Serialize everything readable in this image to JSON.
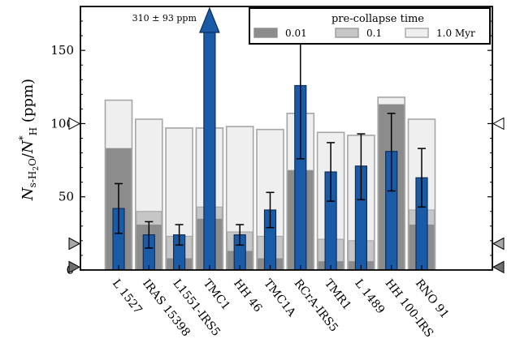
{
  "chart_data": {
    "type": "bar",
    "ylabel_parts": {
      "N": "N",
      "sub": "s-H",
      "two": "2",
      "tail": "O",
      "slash": "/",
      "N2": "N",
      "sup": "*",
      "sub2": "H",
      "units": " (ppm)"
    },
    "ylim": [
      0,
      180
    ],
    "yticks": [
      0,
      50,
      100,
      150
    ],
    "categories": [
      "L 1527",
      "IRAS 15398",
      "L1551-IRS5",
      "TMC1",
      "HH 46",
      "TMC1A",
      "RCrA-IRS5",
      "TMR1",
      "L 1489",
      "HH 100-IRS",
      "RNO 91"
    ],
    "series": [
      {
        "name": "0.01",
        "color": "#8c8c8c",
        "values": [
          83,
          31,
          8,
          35,
          13,
          8,
          68,
          6,
          6,
          113,
          31
        ]
      },
      {
        "name": "0.1",
        "color": "#c6c6c6",
        "values": [
          83,
          40,
          23,
          43,
          26,
          23,
          68,
          21,
          20,
          113,
          41
        ]
      },
      {
        "name": "1.0 Myr",
        "color": "#efefef",
        "values": [
          116,
          103,
          97,
          97,
          98,
          96,
          107,
          94,
          92,
          118,
          103
        ]
      }
    ],
    "observed": {
      "color": "#1a5ba8",
      "values": [
        42,
        24,
        24,
        310,
        24,
        41,
        126,
        67,
        71,
        81,
        63
      ],
      "err_low": [
        17,
        9,
        7,
        93,
        7,
        12,
        50,
        20,
        23,
        27,
        20
      ],
      "err_high": [
        17,
        9,
        7,
        93,
        7,
        12,
        50,
        20,
        22,
        26,
        20
      ]
    },
    "off_scale": {
      "category": "TMC1",
      "label": "310 ± 93 ppm"
    },
    "markers": {
      "left": {
        "open": [
          100
        ],
        "filled": [
          18,
          2
        ]
      },
      "right": {
        "open": [
          100
        ],
        "filled": [
          18,
          2
        ]
      }
    },
    "legend": {
      "title": "pre-collapse time",
      "entries": [
        "0.01",
        "0.1",
        "1.0 Myr"
      ],
      "placement": "top-right"
    },
    "grid": false
  }
}
